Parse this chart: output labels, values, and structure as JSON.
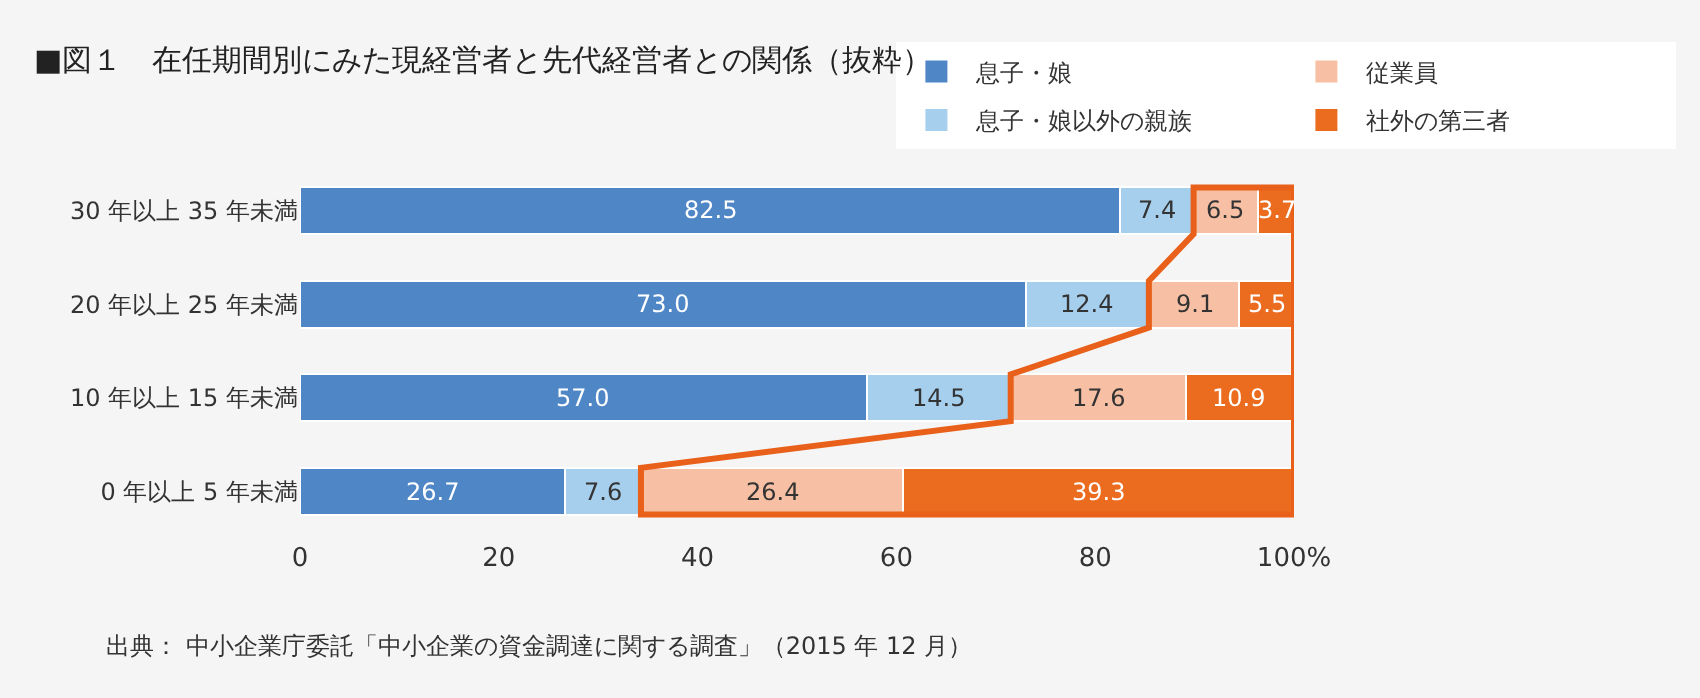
{
  "chart_data": {
    "type": "bar",
    "orientation": "horizontal",
    "stacked": true,
    "title": "■図１　在任期間別にみた現経営者と先代経営者との関係（抜粋）",
    "categories": [
      "30 年以上 35 年未満",
      "20 年以上 25 年未満",
      "10 年以上 15 年未満",
      "0 年以上 5 年未満"
    ],
    "series": [
      {
        "name": "息子・娘",
        "color": "#4f86c6",
        "values": [
          82.5,
          73.0,
          57.0,
          26.7
        ]
      },
      {
        "name": "息子・娘以外の親族",
        "color": "#a6cfee",
        "values": [
          7.4,
          12.4,
          14.5,
          7.6
        ]
      },
      {
        "name": "従業員",
        "color": "#f7c0a4",
        "values": [
          6.5,
          9.1,
          17.6,
          26.4
        ]
      },
      {
        "name": "社外の第三者",
        "color": "#ec6c1f",
        "values": [
          3.7,
          5.5,
          10.9,
          39.3
        ]
      }
    ],
    "value_labels": [
      [
        "82.5",
        "73.0",
        "57.0",
        "26.7"
      ],
      [
        "7.4",
        "12.4",
        "14.5",
        "7.6"
      ],
      [
        "6.5",
        "9.1",
        "17.6",
        "26.4"
      ],
      [
        "3.7",
        "5.5",
        "10.9",
        "39.3"
      ]
    ],
    "xlim": [
      0,
      100
    ],
    "xticks": [
      0,
      20,
      40,
      60,
      80,
      {
        "value": 100,
        "label": "100%"
      }
    ],
    "grid": false,
    "legend": "top right",
    "annotations": [
      "出典： 中小企業庁委託「中小企業の資金調達に関する調査」（2015 年 12 月）"
    ]
  }
}
